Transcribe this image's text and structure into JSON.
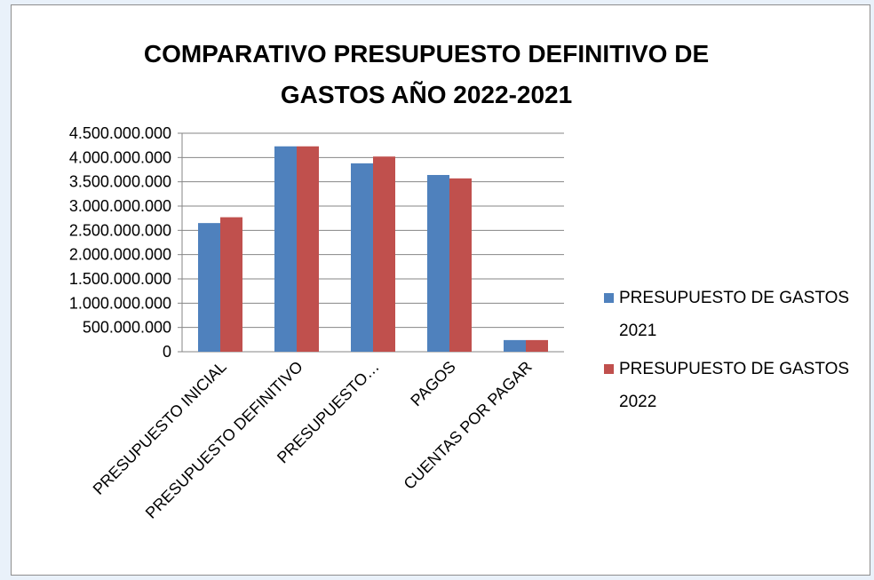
{
  "chart_data": {
    "type": "bar",
    "title": "COMPARATIVO PRESUPUESTO DEFINITIVO DE GASTOS  AÑO 2022-2021",
    "categories": [
      "PRESUPUESTO INICIAL",
      "PRESUPUESTO DEFINITIVO",
      "PRESUPUESTO…",
      "PAGOS",
      "CUENTAS POR PAGAR"
    ],
    "series": [
      {
        "name": "PRESUPUESTO DE GASTOS 2021",
        "color": "#4f81bd",
        "values": [
          2650000000,
          4230000000,
          3880000000,
          3640000000,
          240000000
        ]
      },
      {
        "name": "PRESUPUESTO DE GASTOS 2022",
        "color": "#c0504d",
        "values": [
          2770000000,
          4230000000,
          4020000000,
          3570000000,
          240000000
        ]
      }
    ],
    "ylim": [
      0,
      4500000000
    ],
    "yticks": [
      0,
      {
        "value": 500000000,
        "label": "500.000.000"
      },
      {
        "value": 1000000000,
        "label": "1.000.000.000"
      },
      {
        "value": 1500000000,
        "label": "1.500.000.000"
      },
      {
        "value": 2000000000,
        "label": "2.000.000.000"
      },
      {
        "value": 2500000000,
        "label": "2.500.000.000"
      },
      {
        "value": 3000000000,
        "label": "3.000.000.000"
      },
      {
        "value": 3500000000,
        "label": "3.500.000.000"
      },
      {
        "value": 4000000000,
        "label": "4.000.000.000"
      },
      {
        "value": 4500000000,
        "label": "4.500.000.000"
      }
    ],
    "grid": true,
    "legend": "right"
  }
}
